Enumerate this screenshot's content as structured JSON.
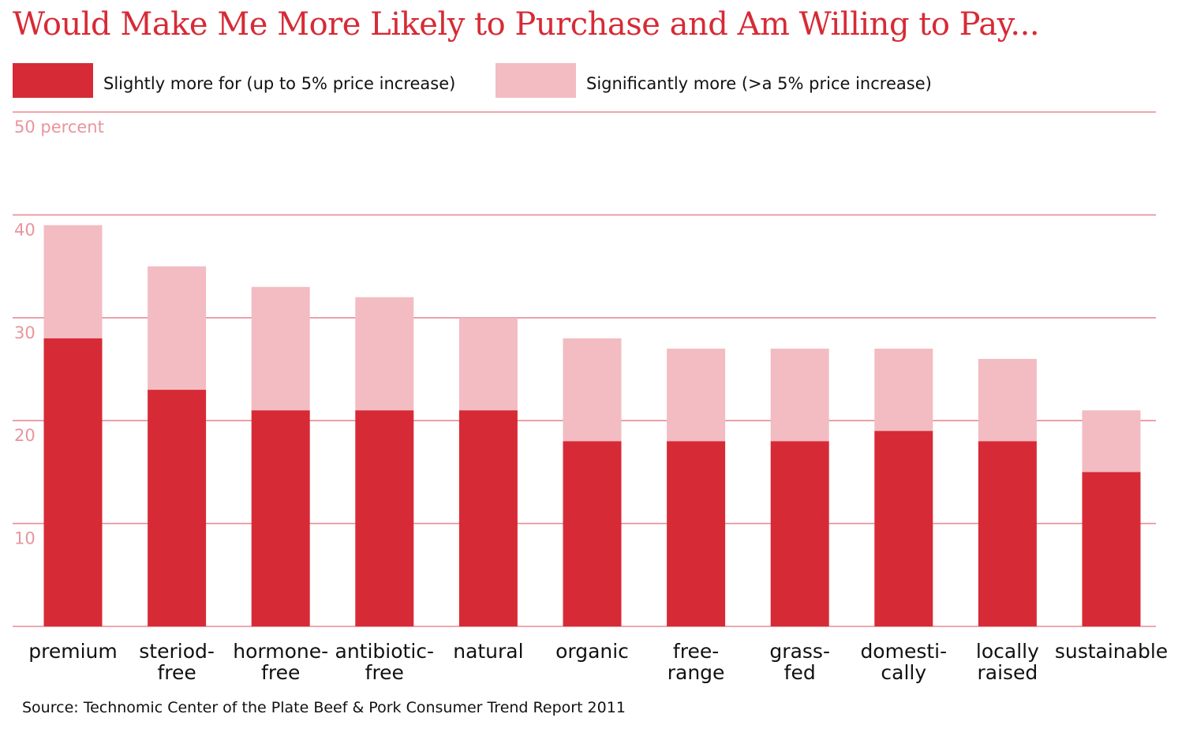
{
  "title": "Would Make Me More Likely to Purchase and Am Willing to Pay...",
  "colors": {
    "slightly": "#d62b36",
    "significantly": "#f2bcc2",
    "grid": "#e88c95",
    "tick": "#e8959c",
    "title": "#d62b36"
  },
  "legend": {
    "slightly": "Slightly more for (up to 5% price increase)",
    "significantly": "Significantly more (>a 5% price increase)"
  },
  "source": "Source: Technomic Center of the Plate Beef & Pork Consumer Trend Report 2011",
  "chart_data": {
    "type": "bar",
    "stacked": true,
    "title": "Would Make Me More Likely to Purchase and Am Willing to Pay...",
    "xlabel": "",
    "ylabel": "",
    "ylim": [
      0,
      50
    ],
    "yticks": [
      {
        "value": 50,
        "label": "50 percent"
      },
      {
        "value": 40,
        "label": "40"
      },
      {
        "value": 30,
        "label": "30"
      },
      {
        "value": 20,
        "label": "20"
      },
      {
        "value": 10,
        "label": "10"
      }
    ],
    "grid": true,
    "legend_position": "top",
    "categories": [
      [
        "premium"
      ],
      [
        "steriod-",
        "free"
      ],
      [
        "hormone-",
        "free"
      ],
      [
        "antibiotic-",
        "free"
      ],
      [
        "natural"
      ],
      [
        "organic"
      ],
      [
        "free-",
        "range"
      ],
      [
        "grass-",
        "fed"
      ],
      [
        "domesti-",
        "cally"
      ],
      [
        "locally",
        "raised"
      ],
      [
        "sustainable"
      ]
    ],
    "series": [
      {
        "name": "Slightly more for (up to 5% price increase)",
        "values": [
          28,
          23,
          21,
          21,
          21,
          18,
          18,
          18,
          19,
          18,
          15
        ]
      },
      {
        "name": "Significantly more (>a 5% price increase)",
        "values": [
          11,
          12,
          12,
          11,
          9,
          10,
          9,
          9,
          8,
          8,
          6
        ]
      }
    ]
  }
}
